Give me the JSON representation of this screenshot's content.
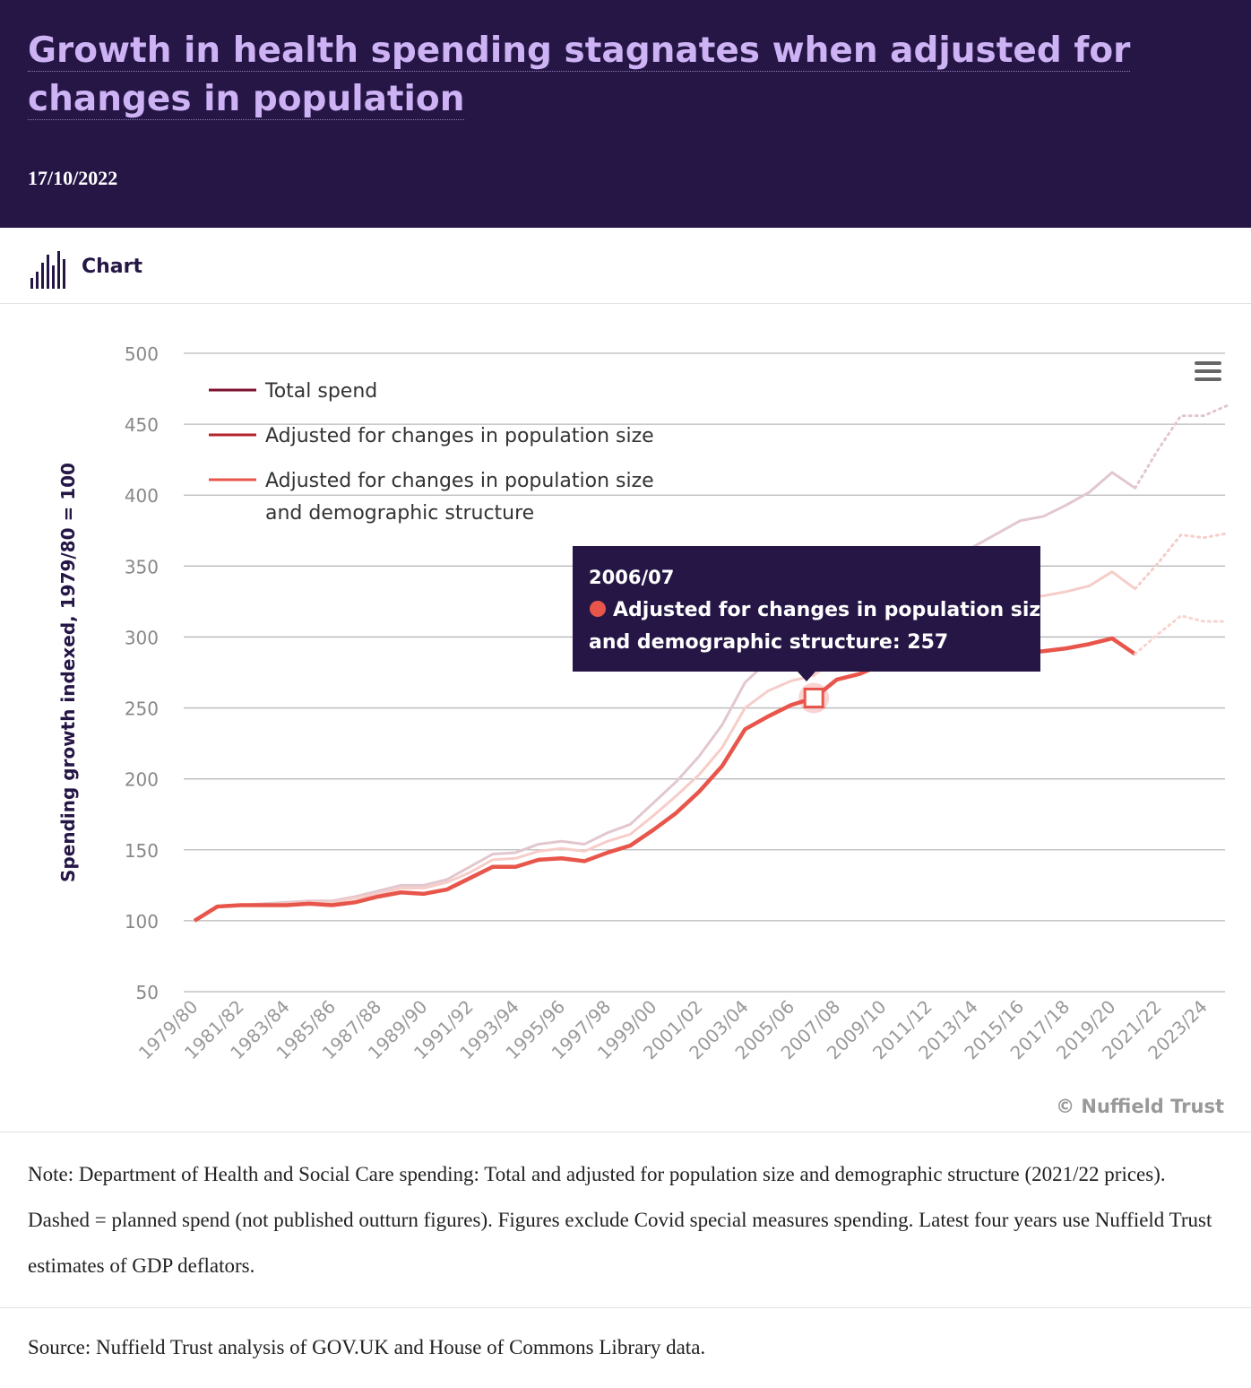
{
  "header": {
    "title": "Growth in health spending stagnates when adjusted for changes in population",
    "date": "17/10/2022"
  },
  "tab": {
    "label": "Chart",
    "icon": "bar-chart-icon"
  },
  "menu": {
    "icon": "hamburger-menu-icon"
  },
  "credit": "© Nuffield Trust",
  "tooltip": {
    "period": "2006/07",
    "series_label": "Adjusted for changes in population size",
    "series_label_2": "and demographic structure: 257"
  },
  "note": "Note:  Department of Health and Social Care spending: Total and adjusted for population size and demographic structure (2021/22 prices). Dashed = planned spend (not published outturn figures). Figures exclude Covid special measures spending.  Latest four years use Nuffield Trust estimates of GDP deflators.",
  "source": "Source:  Nuffield Trust analysis of GOV.UK and House of Commons Library data.",
  "colors": {
    "header_bg": "#251646",
    "title": "#cdb2f4",
    "total_spend": "#7c1230",
    "population_size": "#b5232d",
    "demographic": "#e8554a",
    "tooltip_bg": "#251646"
  },
  "chart_data": {
    "type": "line",
    "ylabel": "Spending growth indexed, 1979/80 = 100",
    "xlabel": "",
    "ylim": [
      50,
      500
    ],
    "yticks": [
      "500",
      "450",
      "400",
      "350",
      "300",
      "250",
      "200",
      "150",
      "100",
      "50"
    ],
    "xtick_labels": [
      "1979/80",
      "1981/82",
      "1983/84",
      "1985/86",
      "1987/88",
      "1989/90",
      "1991/92",
      "1993/94",
      "1995/96",
      "1997/98",
      "1999/00",
      "2001/02",
      "2003/04",
      "2005/06",
      "2007/08",
      "2009/10",
      "2011/12",
      "2013/14",
      "2015/16",
      "2017/18",
      "2019/20",
      "2021/22",
      "2023/24"
    ],
    "x": [
      "1979/80",
      "1980/81",
      "1981/82",
      "1982/83",
      "1983/84",
      "1984/85",
      "1985/86",
      "1986/87",
      "1987/88",
      "1988/89",
      "1989/90",
      "1990/91",
      "1991/92",
      "1992/93",
      "1993/94",
      "1994/95",
      "1995/96",
      "1996/97",
      "1997/98",
      "1998/99",
      "1999/00",
      "2000/01",
      "2001/02",
      "2002/03",
      "2003/04",
      "2004/05",
      "2005/06",
      "2006/07",
      "2007/08",
      "2008/09",
      "2009/10",
      "2010/11",
      "2011/12",
      "2012/13",
      "2013/14",
      "2014/15",
      "2015/16",
      "2016/17",
      "2017/18",
      "2018/19",
      "2019/20",
      "2020/21",
      "2021/22",
      "2022/23",
      "2023/24",
      "2024/25"
    ],
    "planned_from": "2020/21",
    "grid": true,
    "legend_position": "top-left",
    "series": [
      {
        "name": "Total spend",
        "values": [
          100,
          110,
          111,
          112,
          113,
          114,
          114,
          117,
          121,
          125,
          125,
          129,
          138,
          147,
          148,
          154,
          156,
          154,
          162,
          168,
          183,
          198,
          216,
          238,
          268,
          283,
          292,
          296,
          312,
          322,
          333,
          340,
          345,
          355,
          364,
          373,
          382,
          385,
          393,
          402,
          416,
          405,
          432,
          456,
          456,
          463
        ]
      },
      {
        "name": "Adjusted for changes in population size",
        "values": [
          100,
          110,
          111,
          111,
          112,
          113,
          113,
          116,
          119,
          123,
          123,
          127,
          134,
          143,
          144,
          149,
          151,
          149,
          156,
          161,
          174,
          188,
          203,
          222,
          250,
          262,
          269,
          273,
          286,
          294,
          303,
          308,
          311,
          317,
          322,
          325,
          328,
          329,
          332,
          336,
          346,
          334,
          352,
          372,
          370,
          373
        ]
      },
      {
        "name": "Adjusted for changes in population size and demographic structure",
        "values": [
          100,
          110,
          111,
          111,
          111,
          112,
          111,
          113,
          117,
          120,
          119,
          122,
          130,
          138,
          138,
          143,
          144,
          142,
          148,
          153,
          164,
          176,
          191,
          209,
          235,
          244,
          252,
          257,
          270,
          274,
          281,
          284,
          285,
          287,
          288,
          288,
          289,
          290,
          292,
          295,
          299,
          288,
          302,
          315,
          311,
          311
        ]
      }
    ]
  }
}
